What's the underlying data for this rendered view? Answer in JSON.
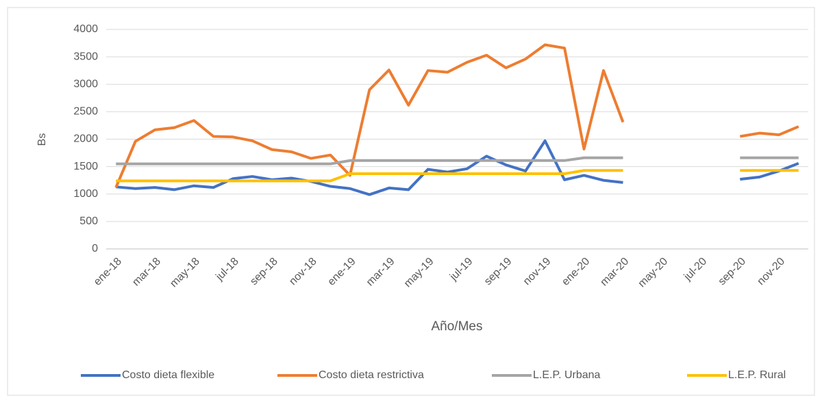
{
  "chart_data": {
    "type": "line",
    "categories": [
      "ene-18",
      null,
      "mar-18",
      null,
      "may-18",
      null,
      "jul-18",
      null,
      "sep-18",
      null,
      "nov-18",
      null,
      "ene-19",
      null,
      "mar-19",
      null,
      "may-19",
      null,
      "jul-19",
      null,
      "sep-19",
      null,
      "nov-19",
      null,
      "ene-20",
      null,
      "mar-20",
      null,
      "may-20",
      null,
      "jul-20",
      null,
      "sep-20",
      null,
      "nov-20",
      null
    ],
    "x_label": "Año/Mes",
    "y_label": "Bs",
    "ylim": [
      0,
      4000
    ],
    "yticks": [
      0,
      500,
      1000,
      1500,
      2000,
      2500,
      3000,
      3500,
      4000
    ],
    "grid": true,
    "legend": "bottom",
    "series": [
      {
        "name": "Costo dieta flexible",
        "color": "#4472c4",
        "values": [
          1130,
          1100,
          1120,
          1080,
          1150,
          1120,
          1280,
          1320,
          1260,
          1290,
          1230,
          1140,
          1100,
          990,
          1110,
          1080,
          1450,
          1400,
          1460,
          1690,
          1530,
          1420,
          1970,
          1260,
          1340,
          1250,
          1210,
          null,
          null,
          null,
          null,
          null,
          1270,
          1310,
          1420,
          1560
        ]
      },
      {
        "name": "Costo dieta restrictiva",
        "color": "#ed7d31",
        "values": [
          1120,
          1960,
          2170,
          2210,
          2340,
          2050,
          2040,
          1970,
          1810,
          1770,
          1650,
          1710,
          1340,
          2900,
          3260,
          2620,
          3250,
          3220,
          3400,
          3530,
          3300,
          3460,
          3720,
          3660,
          1820,
          3250,
          2310,
          null,
          null,
          null,
          null,
          null,
          2050,
          2110,
          2080,
          2230
        ]
      },
      {
        "name": "L.E.P. Urbana",
        "color": "#a5a5a5",
        "values": [
          1550,
          1550,
          1550,
          1550,
          1550,
          1550,
          1550,
          1550,
          1550,
          1550,
          1550,
          1550,
          1610,
          1610,
          1610,
          1610,
          1610,
          1610,
          1610,
          1610,
          1610,
          1610,
          1610,
          1610,
          1660,
          1660,
          1660,
          null,
          null,
          null,
          null,
          null,
          1660,
          1660,
          1660,
          1660
        ]
      },
      {
        "name": "L.E.P. Rural",
        "color": "#ffc000",
        "values": [
          1240,
          1240,
          1240,
          1240,
          1240,
          1240,
          1240,
          1240,
          1240,
          1240,
          1240,
          1240,
          1370,
          1370,
          1370,
          1370,
          1370,
          1370,
          1370,
          1370,
          1370,
          1370,
          1370,
          1370,
          1430,
          1430,
          1430,
          null,
          null,
          null,
          null,
          null,
          1430,
          1430,
          1430,
          1430
        ]
      }
    ]
  }
}
